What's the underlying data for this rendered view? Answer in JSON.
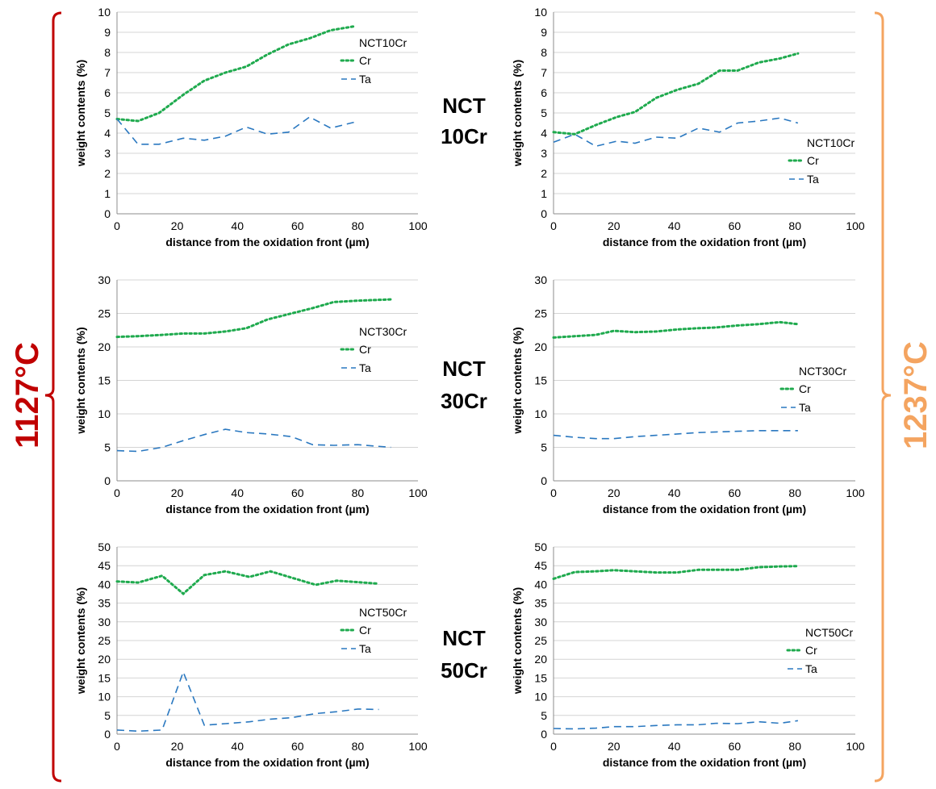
{
  "colors": {
    "cr": "#1faa4e",
    "ta": "#2a78c0",
    "left_temp": "#c00000",
    "right_temp": "#f4a460",
    "grid": "#d4d4d4"
  },
  "temperatures": {
    "left": "1127°C",
    "right": "1237°C"
  },
  "row_labels": [
    {
      "line1": "NCT",
      "line2": "10Cr"
    },
    {
      "line1": "NCT",
      "line2": "30Cr"
    },
    {
      "line1": "NCT",
      "line2": "50Cr"
    }
  ],
  "chart_data": [
    {
      "type": "line",
      "title": "",
      "legend_title": "NCT10Cr",
      "legend": "top-right",
      "xlabel": "distance from the oxidation front (µm)",
      "ylabel": "weight contents (%)",
      "xlim": [
        0,
        100
      ],
      "ylim": [
        0,
        10
      ],
      "xticks": [
        0,
        20,
        40,
        60,
        80,
        100
      ],
      "yticks": [
        0,
        1,
        2,
        3,
        4,
        5,
        6,
        7,
        8,
        9,
        10
      ],
      "grid": true,
      "series": [
        {
          "name": "Cr",
          "style": "dotted",
          "x": [
            0,
            7,
            14,
            22,
            29,
            36,
            43,
            50,
            57,
            64,
            71,
            79
          ],
          "y": [
            4.7,
            4.6,
            5.0,
            5.9,
            6.6,
            7.0,
            7.3,
            7.9,
            8.4,
            8.7,
            9.1,
            9.3
          ]
        },
        {
          "name": "Ta",
          "style": "dashed",
          "x": [
            0,
            7,
            14,
            22,
            29,
            36,
            43,
            50,
            57,
            64,
            71,
            79
          ],
          "y": [
            4.7,
            3.45,
            3.45,
            3.75,
            3.65,
            3.85,
            4.3,
            3.95,
            4.05,
            4.8,
            4.25,
            4.55
          ]
        }
      ]
    },
    {
      "type": "line",
      "title": "",
      "legend_title": "NCT10Cr",
      "legend": "bottom-right",
      "xlabel": "distance from the oxidation front (µm)",
      "ylabel": "weight contents (%)",
      "xlim": [
        0,
        100
      ],
      "ylim": [
        0,
        10
      ],
      "xticks": [
        0,
        20,
        40,
        60,
        80,
        100
      ],
      "yticks": [
        0,
        1,
        2,
        3,
        4,
        5,
        6,
        7,
        8,
        9,
        10
      ],
      "grid": true,
      "series": [
        {
          "name": "Cr",
          "style": "dotted",
          "x": [
            0,
            7,
            14,
            21,
            27,
            34,
            41,
            48,
            55,
            61,
            68,
            75,
            81
          ],
          "y": [
            4.05,
            3.95,
            4.4,
            4.8,
            5.05,
            5.75,
            6.15,
            6.45,
            7.1,
            7.1,
            7.5,
            7.7,
            7.95
          ]
        },
        {
          "name": "Ta",
          "style": "dashed",
          "x": [
            0,
            7,
            14,
            21,
            27,
            34,
            41,
            48,
            55,
            61,
            68,
            75,
            81
          ],
          "y": [
            3.55,
            3.95,
            3.35,
            3.6,
            3.5,
            3.8,
            3.75,
            4.25,
            4.05,
            4.5,
            4.6,
            4.75,
            4.5
          ]
        }
      ]
    },
    {
      "type": "line",
      "title": "",
      "legend_title": "NCT30Cr",
      "legend": "top-right",
      "xlabel": "distance from the oxidation front (µm)",
      "ylabel": "weight contents (%)",
      "xlim": [
        0,
        100
      ],
      "ylim": [
        0,
        30
      ],
      "xticks": [
        0,
        20,
        40,
        60,
        80,
        100
      ],
      "yticks": [
        0,
        5,
        10,
        15,
        20,
        25,
        30
      ],
      "grid": true,
      "series": [
        {
          "name": "Cr",
          "style": "dotted",
          "x": [
            0,
            7,
            15,
            22,
            29,
            36,
            43,
            50,
            58,
            65,
            72,
            80,
            91
          ],
          "y": [
            21.5,
            21.6,
            21.8,
            22.0,
            22.0,
            22.3,
            22.8,
            24.1,
            25.0,
            25.8,
            26.7,
            26.9,
            27.1
          ]
        },
        {
          "name": "Ta",
          "style": "dashed",
          "x": [
            0,
            7,
            15,
            22,
            29,
            36,
            43,
            50,
            58,
            65,
            72,
            80,
            91
          ],
          "y": [
            4.5,
            4.4,
            5.0,
            6.0,
            6.9,
            7.7,
            7.2,
            7.0,
            6.6,
            5.4,
            5.3,
            5.4,
            5.0
          ]
        }
      ]
    },
    {
      "type": "line",
      "title": "",
      "legend_title": "NCT30Cr",
      "legend": "middle-right",
      "xlabel": "distance from the oxidation front (µm)",
      "ylabel": "weight contents (%)",
      "xlim": [
        0,
        100
      ],
      "ylim": [
        0,
        30
      ],
      "xticks": [
        0,
        20,
        40,
        60,
        80,
        100
      ],
      "yticks": [
        0,
        5,
        10,
        15,
        20,
        25,
        30
      ],
      "grid": true,
      "series": [
        {
          "name": "Cr",
          "style": "dotted",
          "x": [
            0,
            7,
            14,
            20,
            27,
            34,
            41,
            48,
            54,
            61,
            68,
            75,
            81
          ],
          "y": [
            21.4,
            21.6,
            21.8,
            22.4,
            22.2,
            22.3,
            22.6,
            22.8,
            22.9,
            23.2,
            23.4,
            23.7,
            23.4
          ]
        },
        {
          "name": "Ta",
          "style": "dashed",
          "x": [
            0,
            7,
            14,
            20,
            27,
            34,
            41,
            48,
            54,
            61,
            68,
            75,
            81
          ],
          "y": [
            6.8,
            6.5,
            6.3,
            6.3,
            6.6,
            6.8,
            7.0,
            7.2,
            7.3,
            7.4,
            7.5,
            7.5,
            7.5
          ]
        }
      ]
    },
    {
      "type": "line",
      "title": "",
      "legend_title": "NCT50Cr",
      "legend": "middle-right",
      "xlabel": "distance from the oxidation front (µm)",
      "ylabel": "weight contents (%)",
      "xlim": [
        0,
        100
      ],
      "ylim": [
        0,
        50
      ],
      "xticks": [
        0,
        20,
        40,
        60,
        80,
        100
      ],
      "yticks": [
        0,
        5,
        10,
        15,
        20,
        25,
        30,
        35,
        40,
        45,
        50
      ],
      "grid": true,
      "series": [
        {
          "name": "Cr",
          "style": "dotted",
          "x": [
            0,
            7,
            15,
            22,
            29,
            36,
            44,
            51,
            58,
            66,
            73,
            80,
            87
          ],
          "y": [
            40.8,
            40.5,
            42.3,
            37.5,
            42.5,
            43.5,
            42.0,
            43.5,
            41.8,
            39.9,
            41.0,
            40.6,
            40.2
          ]
        },
        {
          "name": "Ta",
          "style": "dashed",
          "x": [
            0,
            7,
            15,
            22,
            29,
            36,
            44,
            51,
            58,
            66,
            73,
            80,
            87
          ],
          "y": [
            1.1,
            0.8,
            1.1,
            16.6,
            2.4,
            2.8,
            3.3,
            4.0,
            4.4,
            5.5,
            6.0,
            6.7,
            6.6
          ]
        }
      ]
    },
    {
      "type": "line",
      "title": "",
      "legend_title": "NCT50Cr",
      "legend": "middle-right",
      "xlabel": "distance from the oxidation front (µm)",
      "ylabel": "weight contents (%)",
      "xlim": [
        0,
        100
      ],
      "ylim": [
        0,
        50
      ],
      "xticks": [
        0,
        20,
        40,
        60,
        80,
        100
      ],
      "yticks": [
        0,
        5,
        10,
        15,
        20,
        25,
        30,
        35,
        40,
        45,
        50
      ],
      "grid": true,
      "series": [
        {
          "name": "Cr",
          "style": "dotted",
          "x": [
            0,
            7,
            14,
            20,
            27,
            34,
            41,
            48,
            54,
            61,
            68,
            75,
            81
          ],
          "y": [
            41.5,
            43.3,
            43.5,
            43.8,
            43.5,
            43.2,
            43.2,
            43.9,
            43.9,
            43.9,
            44.6,
            44.8,
            44.9
          ]
        },
        {
          "name": "Ta",
          "style": "dashed",
          "x": [
            0,
            7,
            14,
            20,
            27,
            34,
            41,
            48,
            54,
            61,
            68,
            75,
            81
          ],
          "y": [
            1.5,
            1.4,
            1.6,
            2.0,
            2.0,
            2.3,
            2.5,
            2.5,
            2.9,
            2.8,
            3.3,
            2.9,
            3.6
          ]
        }
      ]
    }
  ]
}
